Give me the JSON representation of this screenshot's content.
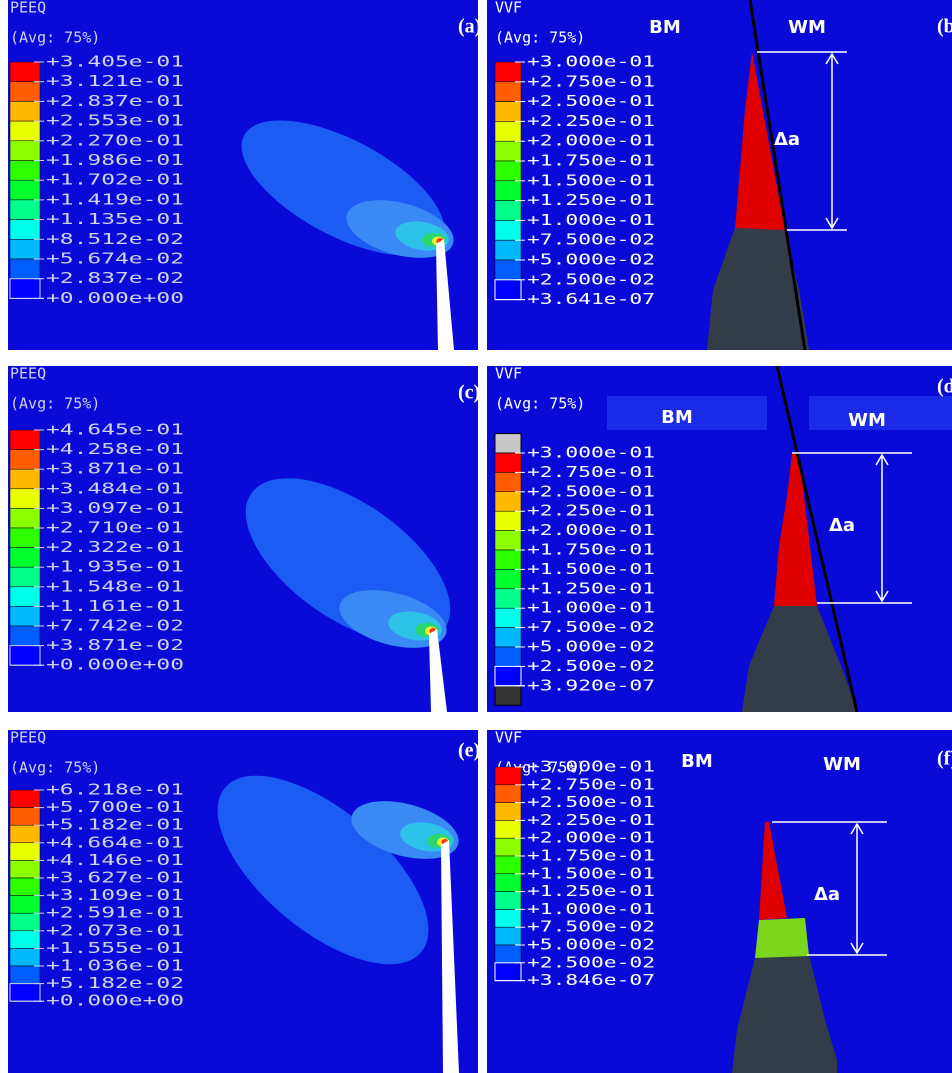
{
  "panels": [
    {
      "label": "(a)",
      "legend": {
        "title": "PEEQ",
        "subtitle": "(Avg: 75%)",
        "values": [
          "+3.405e-01",
          "+3.121e-01",
          "+2.837e-01",
          "+2.553e-01",
          "+2.270e-01",
          "+1.986e-01",
          "+1.702e-01",
          "+1.419e-01",
          "+1.135e-01",
          "+8.512e-02",
          "+5.674e-02",
          "+2.837e-02",
          "+0.000e+00"
        ]
      }
    },
    {
      "label": "(b)",
      "legend": {
        "title": "VVF",
        "subtitle": "(Avg: 75%)",
        "values": [
          "+3.000e-01",
          "+2.750e-01",
          "+2.500e-01",
          "+2.250e-01",
          "+2.000e-01",
          "+1.750e-01",
          "+1.500e-01",
          "+1.250e-01",
          "+1.000e-01",
          "+7.500e-02",
          "+5.000e-02",
          "+2.500e-02",
          "+3.641e-07"
        ]
      },
      "base_metal": "BM",
      "weld_metal": "WM",
      "crack_growth": "Δa"
    },
    {
      "label": "(c)",
      "legend": {
        "title": "PEEQ",
        "subtitle": "(Avg: 75%)",
        "values": [
          "+4.645e-01",
          "+4.258e-01",
          "+3.871e-01",
          "+3.484e-01",
          "+3.097e-01",
          "+2.710e-01",
          "+2.322e-01",
          "+1.935e-01",
          "+1.548e-01",
          "+1.161e-01",
          "+7.742e-02",
          "+3.871e-02",
          "+0.000e+00"
        ]
      }
    },
    {
      "label": "(d)",
      "legend": {
        "title": "VVF",
        "subtitle": "(Avg: 75%)",
        "values": [
          "+3.000e-01",
          "+2.750e-01",
          "+2.500e-01",
          "+2.250e-01",
          "+2.000e-01",
          "+1.750e-01",
          "+1.500e-01",
          "+1.250e-01",
          "+1.000e-01",
          "+7.500e-02",
          "+5.000e-02",
          "+2.500e-02",
          "+3.920e-07"
        ]
      },
      "base_metal": "BM",
      "weld_metal": "WM",
      "crack_growth": "Δa"
    },
    {
      "label": "(e)",
      "legend": {
        "title": "PEEQ",
        "subtitle": "(Avg: 75%)",
        "values": [
          "+6.218e-01",
          "+5.700e-01",
          "+5.182e-01",
          "+4.664e-01",
          "+4.146e-01",
          "+3.627e-01",
          "+3.109e-01",
          "+2.591e-01",
          "+2.073e-01",
          "+1.555e-01",
          "+1.036e-01",
          "+5.182e-02",
          "+0.000e+00"
        ]
      }
    },
    {
      "label": "(f)",
      "legend": {
        "title": "VVF",
        "subtitle": "(Avg: 75%)",
        "values": [
          "+3.000e-01",
          "+2.750e-01",
          "+2.500e-01",
          "+2.250e-01",
          "+2.000e-01",
          "+1.750e-01",
          "+1.500e-01",
          "+1.250e-01",
          "+1.000e-01",
          "+7.500e-02",
          "+5.000e-02",
          "+2.500e-02",
          "+3.846e-07"
        ]
      },
      "base_metal": "BM",
      "weld_metal": "WM",
      "crack_growth": "Δa"
    }
  ]
}
